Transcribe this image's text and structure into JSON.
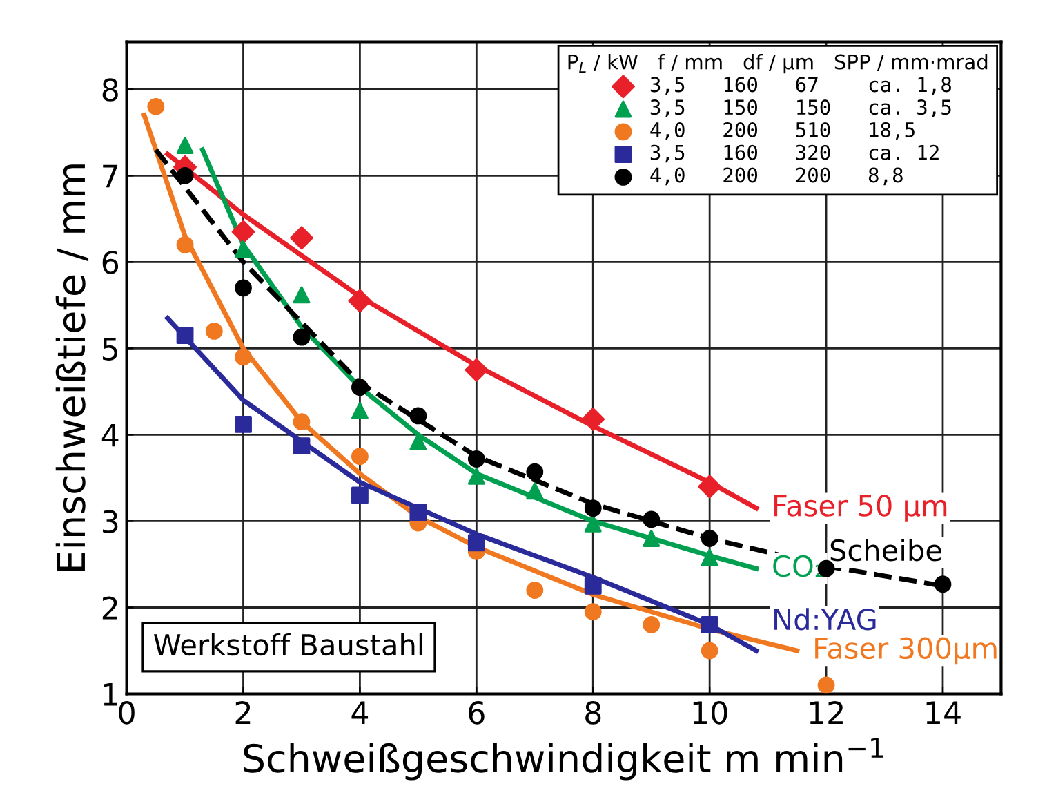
{
  "chart_data": {
    "type": "scatter",
    "xlabel": "Schweißgeschwindigkeit m min$^{−1}$",
    "ylabel": "Einschweißtiefe / mm",
    "legend_title": "P$_{L}$ / kW   f / mm   df / µm   SPP / mm·mrad",
    "annotations": [
      "Werkstoff Baustahl"
    ],
    "xlim": [
      0,
      15
    ],
    "ylim": [
      1,
      8.55
    ],
    "xticks": [
      0,
      2,
      4,
      6,
      8,
      10,
      12,
      14
    ],
    "yticks": [
      1,
      2,
      3,
      4,
      5,
      6,
      7,
      8
    ],
    "grid": true,
    "legend": "top right",
    "series": [
      {
        "type": "line",
        "name": "Faser 50 µm",
        "color": "#e8202a",
        "line_style": "solid",
        "x": [
          0.7,
          2,
          4,
          6,
          8,
          10,
          10.8
        ],
        "values": [
          7.25,
          6.55,
          5.6,
          4.8,
          4.1,
          3.45,
          3.15
        ]
      },
      {
        "type": "line",
        "name": "CO₂",
        "color": "#00a050",
        "line_style": "solid",
        "x": [
          1.3,
          2,
          3,
          4,
          5,
          6,
          8,
          10,
          10.8
        ],
        "values": [
          7.3,
          6.2,
          5.25,
          4.55,
          4.0,
          3.55,
          3.0,
          2.6,
          2.45
        ]
      },
      {
        "type": "line",
        "name": "Faser 300µm",
        "color": "#f07820",
        "line_style": "solid",
        "x": [
          0.3,
          1,
          2,
          3,
          4,
          5,
          6,
          8,
          10,
          11.5
        ],
        "values": [
          7.7,
          6.3,
          5.0,
          4.15,
          3.55,
          3.05,
          2.7,
          2.15,
          1.75,
          1.5
        ]
      },
      {
        "type": "line",
        "name": "Nd:YAG",
        "color": "#2a2a9a",
        "line_style": "solid",
        "x": [
          0.7,
          2,
          4,
          6,
          8,
          10,
          10.8
        ],
        "values": [
          5.35,
          4.4,
          3.45,
          2.85,
          2.35,
          1.8,
          1.5
        ]
      },
      {
        "type": "line",
        "name": "Scheibe",
        "color": "#000000",
        "line_style": "dashed",
        "x": [
          0.5,
          2,
          4,
          6,
          8,
          10,
          12,
          14
        ],
        "values": [
          7.3,
          6.0,
          4.6,
          3.75,
          3.2,
          2.8,
          2.48,
          2.25
        ]
      },
      {
        "name": "3,5   160   67    ca. 1,8",
        "color": "#e8202a",
        "marker": "diamond",
        "x": [
          1,
          2,
          3,
          4,
          6,
          8,
          10
        ],
        "values": [
          7.1,
          6.35,
          6.28,
          5.55,
          4.75,
          4.18,
          3.4
        ]
      },
      {
        "name": "3,5   150   150   ca. 3,5",
        "color": "#00a050",
        "marker": "triangle",
        "x": [
          1,
          2,
          3,
          4,
          5,
          6,
          7,
          8,
          9,
          10
        ],
        "values": [
          7.35,
          6.15,
          5.62,
          4.28,
          3.92,
          3.52,
          3.35,
          2.97,
          2.8,
          2.58
        ]
      },
      {
        "name": "4,0   200   510   18,5",
        "color": "#f07820",
        "marker": "circle",
        "x": [
          0.5,
          1,
          1.5,
          2,
          3,
          4,
          5,
          6,
          7,
          8,
          9,
          10,
          12
        ],
        "values": [
          7.8,
          6.2,
          5.2,
          4.9,
          4.15,
          3.75,
          2.98,
          2.65,
          2.2,
          1.95,
          1.8,
          1.5,
          1.1
        ]
      },
      {
        "name": "3,5   160   320   ca. 12",
        "color": "#2a2a9a",
        "marker": "square",
        "x": [
          1,
          2,
          3,
          4,
          5,
          6,
          8,
          10
        ],
        "values": [
          5.15,
          4.12,
          3.87,
          3.3,
          3.1,
          2.75,
          2.25,
          1.8
        ]
      },
      {
        "name": "4,0   200   200   8,8",
        "color": "#000000",
        "marker": "circle",
        "x": [
          1,
          2,
          3,
          4,
          5,
          6,
          7,
          8,
          9,
          10,
          12,
          14
        ],
        "values": [
          7.0,
          5.7,
          5.13,
          4.55,
          4.22,
          3.72,
          3.57,
          3.15,
          3.02,
          2.8,
          2.45,
          2.27
        ]
      }
    ]
  }
}
